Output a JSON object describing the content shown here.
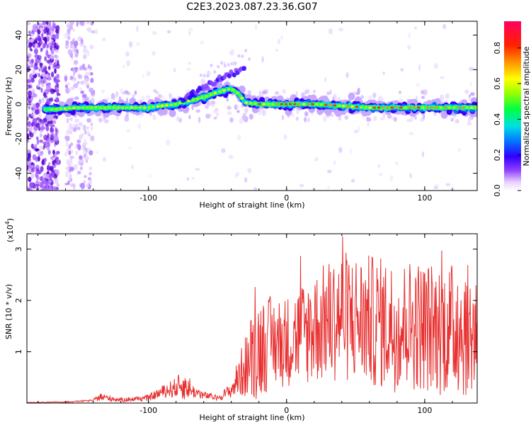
{
  "title": "C2E3.2023.087.23.36.G07",
  "chart_data": [
    {
      "type": "heatmap",
      "xlabel": "Height of straight line (km)",
      "ylabel": "Frequency (Hz)",
      "xlim": [
        -188,
        138
      ],
      "ylim": [
        -50,
        48
      ],
      "xticks": [
        -100,
        0,
        100
      ],
      "yticks": [
        -40,
        -20,
        0,
        20,
        40
      ],
      "x_tick_labels": [
        "-100",
        "0",
        "100"
      ],
      "y_tick_labels": [
        "-40",
        "-20",
        "0",
        "20",
        "40"
      ],
      "colorbar": {
        "label": "Normalized spectral amplitude",
        "range": [
          0,
          0.95
        ],
        "ticks": [
          0,
          0.2,
          0.4,
          0.6,
          0.8
        ],
        "tick_labels": [
          "0.0",
          "0.2",
          "0.4",
          "0.6",
          "0.8"
        ]
      },
      "ridge": {
        "x": [
          -185,
          -170,
          -150,
          -130,
          -110,
          -100,
          -90,
          -80,
          -70,
          -60,
          -50,
          -40,
          -35,
          -30,
          -20,
          -10,
          0,
          10,
          20,
          40,
          60,
          80,
          100,
          120,
          138
        ],
        "y": [
          -3,
          -3,
          -2,
          -2,
          -2,
          -2,
          -1,
          0,
          2,
          4,
          7,
          9,
          6,
          1,
          0,
          0,
          0,
          0,
          0,
          -1,
          -2,
          -2,
          -2,
          -2,
          -2
        ]
      },
      "grid": false
    },
    {
      "type": "line",
      "xlabel": "Height of straight line (km)",
      "ylabel": "SNR (10 * v/v)",
      "y_multiplier_label": "(x10",
      "y_multiplier_exp": "4",
      "xlim": [
        -188,
        138
      ],
      "ylim": [
        0,
        3.3
      ],
      "xticks": [
        -100,
        0,
        100
      ],
      "yticks": [
        1,
        2,
        3
      ],
      "x_tick_labels": [
        "-100",
        "0",
        "100"
      ],
      "y_tick_labels": [
        "1",
        "2",
        "3"
      ],
      "series": [
        {
          "color": "#e83030",
          "envelope_x": [
            -188,
            -160,
            -140,
            -135,
            -120,
            -100,
            -90,
            -80,
            -75,
            -70,
            -60,
            -50,
            -40,
            -35,
            -30,
            -25,
            -20,
            -10,
            0,
            10,
            20,
            30,
            40,
            50,
            60,
            70,
            80,
            90,
            100,
            110,
            120,
            130,
            138
          ],
          "envelope_mean": [
            0.01,
            0.02,
            0.05,
            0.12,
            0.06,
            0.1,
            0.22,
            0.3,
            0.35,
            0.25,
            0.15,
            0.1,
            0.25,
            0.5,
            0.7,
            0.9,
            1.1,
            1.2,
            1.2,
            1.35,
            1.45,
            1.6,
            1.7,
            1.65,
            1.6,
            1.55,
            1.5,
            1.55,
            1.5,
            1.45,
            1.45,
            1.4,
            1.4
          ],
          "envelope_amp": [
            0.005,
            0.01,
            0.02,
            0.08,
            0.04,
            0.06,
            0.12,
            0.2,
            0.3,
            0.15,
            0.08,
            0.05,
            0.15,
            0.4,
            0.6,
            0.9,
            1.0,
            0.9,
            0.9,
            1.0,
            1.1,
            1.2,
            1.3,
            1.3,
            1.3,
            1.3,
            1.3,
            1.3,
            1.3,
            1.3,
            1.3,
            1.3,
            1.3
          ]
        }
      ],
      "grid": false
    }
  ]
}
